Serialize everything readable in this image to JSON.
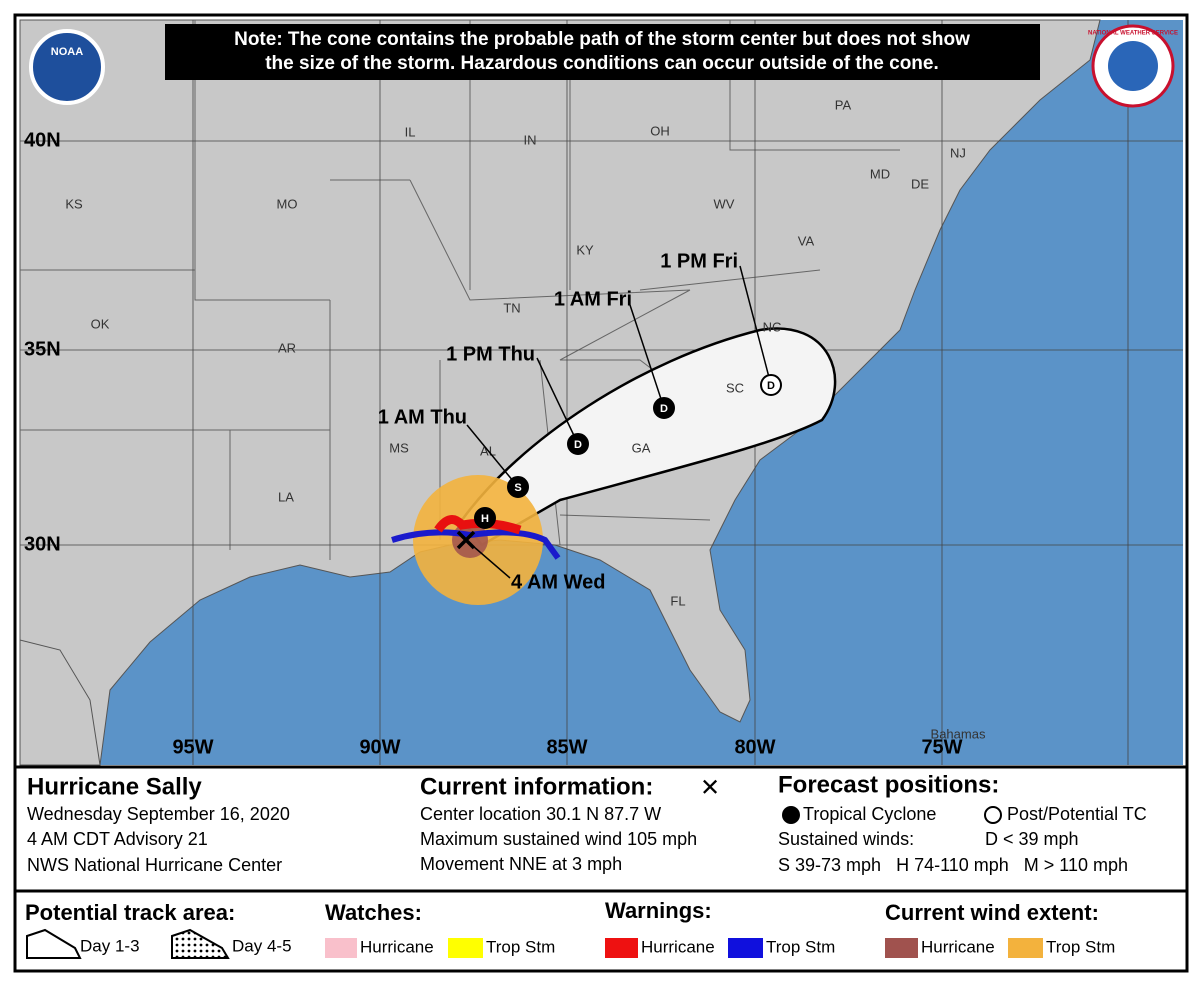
{
  "note": [
    "Note: The cone contains the probable path of the storm center but does not show",
    "the size of the storm. Hazardous conditions can occur outside of the cone."
  ],
  "logos": [
    "NOAA",
    "NATIONAL WEATHER SERVICE"
  ],
  "map": {
    "state_labels": [
      "IL",
      "IN",
      "OH",
      "PA",
      "NJ",
      "MD",
      "DE",
      "KS",
      "MO",
      "WV",
      "VA",
      "KY",
      "TN",
      "OK",
      "AR",
      "NC",
      "SC",
      "MS",
      "AL",
      "GA",
      "LA",
      "FL",
      "Bahamas"
    ],
    "latitude_labels": [
      "40N",
      "35N",
      "30N"
    ],
    "longitude_labels": [
      "95W",
      "90W",
      "85W",
      "80W",
      "75W"
    ],
    "forecast_times": [
      "4 AM Wed",
      "1 AM Thu",
      "1 PM Thu",
      "1 AM Fri",
      "1 PM Fri"
    ],
    "forecast_markers": [
      "H",
      "S",
      "D",
      "D",
      "D"
    ]
  },
  "info": {
    "storm": "Hurricane Sally",
    "date": "Wednesday September 16, 2020",
    "advisory": "4 AM CDT Advisory 21",
    "center": "NWS National Hurricane Center",
    "current_title": "Current information:",
    "current_symbol": "✕",
    "current_lines": [
      "Center location 30.1 N 87.7 W",
      "Maximum sustained wind 105 mph",
      "Movement NNE at 3 mph"
    ],
    "forecast_title": "Forecast positions:",
    "tropical_cyclone": "Tropical Cyclone",
    "post_tc": "Post/Potential TC",
    "sustained_winds": "Sustained winds:",
    "wind_d": "D < 39 mph",
    "wind_classes": "S 39-73 mph   H 74-110 mph   M > 110 mph"
  },
  "legend": {
    "track_title": "Potential track area:",
    "day13": "Day 1-3",
    "day45": "Day 4-5",
    "watches_title": "Watches:",
    "watch_hurricane": "Hurricane",
    "watch_tropstm": "Trop Stm",
    "warnings_title": "Warnings:",
    "warn_hurricane": "Hurricane",
    "warn_tropstm": "Trop Stm",
    "wind_title": "Current wind extent:",
    "wind_hurricane": "Hurricane",
    "wind_tropstm": "Trop Stm"
  }
}
